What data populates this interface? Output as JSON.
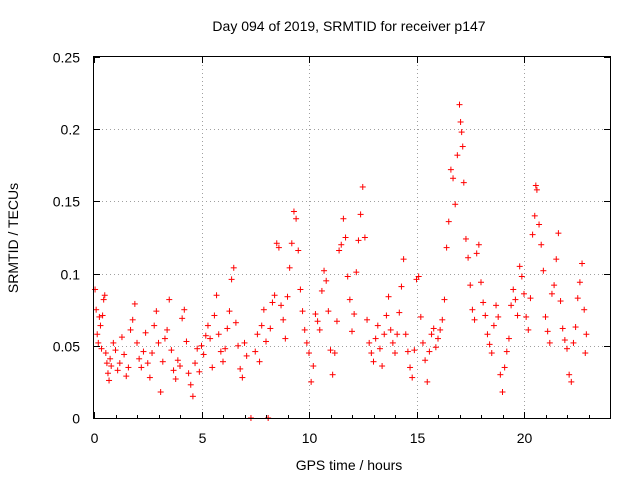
{
  "chart_data": {
    "type": "scatter",
    "title": "Day 094 of 2019, SRMTID for receiver p147",
    "xlabel": "GPS time / hours",
    "ylabel": "SRMTID / TECUs",
    "xlim": [
      0,
      24
    ],
    "ylim": [
      0,
      0.25
    ],
    "grid": true,
    "marker": "+",
    "color": "#ff0000",
    "x_ticks": [
      {
        "value": 0,
        "label": "0"
      },
      {
        "value": 5,
        "label": "5"
      },
      {
        "value": 10,
        "label": "10"
      },
      {
        "value": 15,
        "label": "15"
      },
      {
        "value": 20,
        "label": "20"
      }
    ],
    "y_ticks": [
      {
        "value": 0,
        "label": "0"
      },
      {
        "value": 0.05,
        "label": "0.05"
      },
      {
        "value": 0.1,
        "label": "0.1"
      },
      {
        "value": 0.15,
        "label": "0.15"
      },
      {
        "value": 0.2,
        "label": "0.2"
      },
      {
        "value": 0.25,
        "label": "0.25"
      }
    ],
    "series": [
      {
        "name": "SRMTID",
        "points": [
          [
            0.05,
            0.089
          ],
          [
            0.1,
            0.075
          ],
          [
            0.15,
            0.058
          ],
          [
            0.2,
            0.052
          ],
          [
            0.25,
            0.07
          ],
          [
            0.3,
            0.064
          ],
          [
            0.35,
            0.048
          ],
          [
            0.4,
            0.071
          ],
          [
            0.45,
            0.082
          ],
          [
            0.5,
            0.085
          ],
          [
            0.55,
            0.045
          ],
          [
            0.6,
            0.038
          ],
          [
            0.65,
            0.031
          ],
          [
            0.7,
            0.026
          ],
          [
            0.75,
            0.041
          ],
          [
            0.8,
            0.036
          ],
          [
            0.9,
            0.052
          ],
          [
            1.0,
            0.047
          ],
          [
            1.1,
            0.033
          ],
          [
            1.2,
            0.038
          ],
          [
            1.3,
            0.056
          ],
          [
            1.4,
            0.044
          ],
          [
            1.5,
            0.029
          ],
          [
            1.6,
            0.035
          ],
          [
            1.7,
            0.061
          ],
          [
            1.8,
            0.068
          ],
          [
            1.9,
            0.079
          ],
          [
            2.0,
            0.052
          ],
          [
            2.1,
            0.041
          ],
          [
            2.2,
            0.035
          ],
          [
            2.3,
            0.046
          ],
          [
            2.4,
            0.059
          ],
          [
            2.5,
            0.038
          ],
          [
            2.6,
            0.028
          ],
          [
            2.7,
            0.045
          ],
          [
            2.8,
            0.064
          ],
          [
            2.9,
            0.074
          ],
          [
            3.0,
            0.052
          ],
          [
            3.1,
            0.018
          ],
          [
            3.2,
            0.039
          ],
          [
            3.3,
            0.055
          ],
          [
            3.4,
            0.061
          ],
          [
            3.5,
            0.082
          ],
          [
            3.6,
            0.047
          ],
          [
            3.7,
            0.033
          ],
          [
            3.8,
            0.027
          ],
          [
            3.9,
            0.04
          ],
          [
            4.0,
            0.036
          ],
          [
            4.1,
            0.069
          ],
          [
            4.2,
            0.075
          ],
          [
            4.3,
            0.053
          ],
          [
            4.4,
            0.031
          ],
          [
            4.5,
            0.023
          ],
          [
            4.6,
            0.015
          ],
          [
            4.7,
            0.038
          ],
          [
            4.8,
            0.048
          ],
          [
            4.9,
            0.032
          ],
          [
            5.0,
            0.05
          ],
          [
            5.1,
            0.044
          ],
          [
            5.2,
            0.057
          ],
          [
            5.3,
            0.064
          ],
          [
            5.4,
            0.055
          ],
          [
            5.5,
            0.035
          ],
          [
            5.6,
            0.071
          ],
          [
            5.7,
            0.085
          ],
          [
            5.8,
            0.058
          ],
          [
            5.9,
            0.046
          ],
          [
            6.0,
            0.039
          ],
          [
            6.1,
            0.048
          ],
          [
            6.2,
            0.062
          ],
          [
            6.3,
            0.074
          ],
          [
            6.4,
            0.096
          ],
          [
            6.5,
            0.104
          ],
          [
            6.6,
            0.066
          ],
          [
            6.7,
            0.05
          ],
          [
            6.8,
            0.034
          ],
          [
            6.9,
            0.028
          ],
          [
            7.0,
            0.052
          ],
          [
            7.1,
            0.043
          ],
          [
            7.3,
            0.0
          ],
          [
            7.5,
            0.046
          ],
          [
            7.6,
            0.058
          ],
          [
            7.7,
            0.039
          ],
          [
            7.8,
            0.064
          ],
          [
            7.9,
            0.075
          ],
          [
            8.0,
            0.053
          ],
          [
            8.1,
            0.0
          ],
          [
            8.2,
            0.062
          ],
          [
            8.3,
            0.08
          ],
          [
            8.4,
            0.085
          ],
          [
            8.5,
            0.121
          ],
          [
            8.6,
            0.118
          ],
          [
            8.7,
            0.078
          ],
          [
            8.8,
            0.068
          ],
          [
            8.9,
            0.055
          ],
          [
            9.0,
            0.084
          ],
          [
            9.1,
            0.104
          ],
          [
            9.2,
            0.121
          ],
          [
            9.3,
            0.143
          ],
          [
            9.4,
            0.138
          ],
          [
            9.5,
            0.116
          ],
          [
            9.6,
            0.089
          ],
          [
            9.7,
            0.074
          ],
          [
            9.8,
            0.061
          ],
          [
            9.9,
            0.052
          ],
          [
            10.0,
            0.045
          ],
          [
            10.1,
            0.025
          ],
          [
            10.2,
            0.036
          ],
          [
            10.3,
            0.072
          ],
          [
            10.4,
            0.067
          ],
          [
            10.5,
            0.061
          ],
          [
            10.6,
            0.088
          ],
          [
            10.7,
            0.102
          ],
          [
            10.8,
            0.095
          ],
          [
            10.9,
            0.074
          ],
          [
            11.0,
            0.047
          ],
          [
            11.1,
            0.03
          ],
          [
            11.2,
            0.045
          ],
          [
            11.3,
            0.067
          ],
          [
            11.4,
            0.116
          ],
          [
            11.5,
            0.12
          ],
          [
            11.6,
            0.138
          ],
          [
            11.7,
            0.125
          ],
          [
            11.8,
            0.098
          ],
          [
            11.9,
            0.082
          ],
          [
            12.0,
            0.06
          ],
          [
            12.1,
            0.072
          ],
          [
            12.2,
            0.101
          ],
          [
            12.3,
            0.123
          ],
          [
            12.4,
            0.141
          ],
          [
            12.5,
            0.16
          ],
          [
            12.6,
            0.125
          ],
          [
            12.7,
            0.068
          ],
          [
            12.8,
            0.052
          ],
          [
            12.9,
            0.045
          ],
          [
            13.0,
            0.039
          ],
          [
            13.1,
            0.055
          ],
          [
            13.2,
            0.064
          ],
          [
            13.3,
            0.048
          ],
          [
            13.4,
            0.036
          ],
          [
            13.5,
            0.058
          ],
          [
            13.6,
            0.071
          ],
          [
            13.7,
            0.084
          ],
          [
            13.8,
            0.061
          ],
          [
            13.9,
            0.052
          ],
          [
            14.0,
            0.045
          ],
          [
            14.1,
            0.058
          ],
          [
            14.2,
            0.073
          ],
          [
            14.3,
            0.091
          ],
          [
            14.4,
            0.11
          ],
          [
            14.5,
            0.058
          ],
          [
            14.6,
            0.046
          ],
          [
            14.7,
            0.035
          ],
          [
            14.8,
            0.028
          ],
          [
            14.9,
            0.047
          ],
          [
            15.0,
            0.096
          ],
          [
            15.1,
            0.098
          ],
          [
            15.2,
            0.07
          ],
          [
            15.3,
            0.052
          ],
          [
            15.4,
            0.04
          ],
          [
            15.5,
            0.025
          ],
          [
            15.6,
            0.046
          ],
          [
            15.7,
            0.058
          ],
          [
            15.8,
            0.062
          ],
          [
            15.9,
            0.049
          ],
          [
            16.0,
            0.055
          ],
          [
            16.1,
            0.061
          ],
          [
            16.2,
            0.068
          ],
          [
            16.3,
            0.082
          ],
          [
            16.4,
            0.118
          ],
          [
            16.5,
            0.136
          ],
          [
            16.6,
            0.172
          ],
          [
            16.7,
            0.166
          ],
          [
            16.8,
            0.148
          ],
          [
            16.9,
            0.182
          ],
          [
            17.0,
            0.217
          ],
          [
            17.05,
            0.205
          ],
          [
            17.1,
            0.198
          ],
          [
            17.15,
            0.188
          ],
          [
            17.2,
            0.163
          ],
          [
            17.3,
            0.124
          ],
          [
            17.4,
            0.111
          ],
          [
            17.5,
            0.092
          ],
          [
            17.6,
            0.075
          ],
          [
            17.7,
            0.068
          ],
          [
            17.8,
            0.114
          ],
          [
            17.9,
            0.12
          ],
          [
            18.0,
            0.094
          ],
          [
            18.1,
            0.08
          ],
          [
            18.2,
            0.071
          ],
          [
            18.3,
            0.058
          ],
          [
            18.4,
            0.051
          ],
          [
            18.5,
            0.045
          ],
          [
            18.6,
            0.064
          ],
          [
            18.7,
            0.078
          ],
          [
            18.8,
            0.07
          ],
          [
            18.9,
            0.03
          ],
          [
            19.0,
            0.018
          ],
          [
            19.1,
            0.035
          ],
          [
            19.2,
            0.046
          ],
          [
            19.3,
            0.055
          ],
          [
            19.4,
            0.078
          ],
          [
            19.5,
            0.089
          ],
          [
            19.6,
            0.082
          ],
          [
            19.7,
            0.071
          ],
          [
            19.8,
            0.105
          ],
          [
            19.9,
            0.098
          ],
          [
            20.0,
            0.086
          ],
          [
            20.1,
            0.07
          ],
          [
            20.2,
            0.061
          ],
          [
            20.3,
            0.083
          ],
          [
            20.4,
            0.127
          ],
          [
            20.5,
            0.14
          ],
          [
            20.55,
            0.161
          ],
          [
            20.6,
            0.158
          ],
          [
            20.7,
            0.134
          ],
          [
            20.8,
            0.12
          ],
          [
            20.9,
            0.102
          ],
          [
            21.0,
            0.07
          ],
          [
            21.1,
            0.06
          ],
          [
            21.2,
            0.052
          ],
          [
            21.3,
            0.086
          ],
          [
            21.4,
            0.092
          ],
          [
            21.5,
            0.11
          ],
          [
            21.6,
            0.128
          ],
          [
            21.7,
            0.081
          ],
          [
            21.8,
            0.062
          ],
          [
            21.9,
            0.054
          ],
          [
            22.0,
            0.048
          ],
          [
            22.1,
            0.03
          ],
          [
            22.2,
            0.025
          ],
          [
            22.3,
            0.052
          ],
          [
            22.4,
            0.063
          ],
          [
            22.5,
            0.083
          ],
          [
            22.6,
            0.094
          ],
          [
            22.7,
            0.107
          ],
          [
            22.8,
            0.075
          ],
          [
            22.85,
            0.045
          ],
          [
            22.9,
            0.058
          ]
        ]
      }
    ]
  }
}
